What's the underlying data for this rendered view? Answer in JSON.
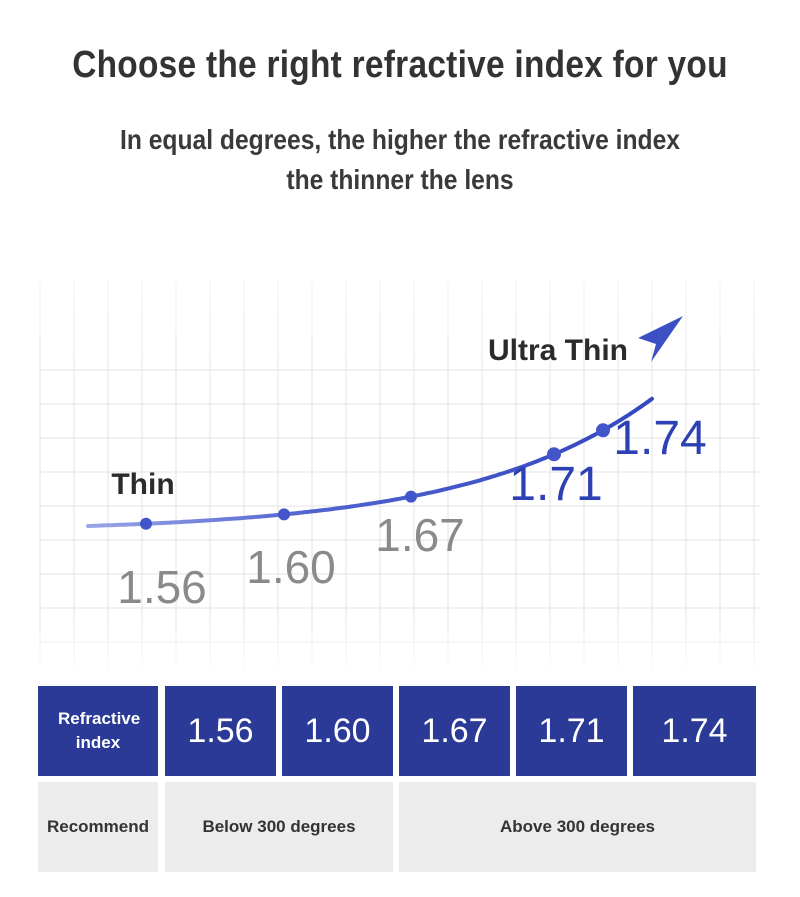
{
  "title": "Choose the right refractive index for you",
  "subtitle_line1": "In equal degrees, the higher the refractive index",
  "subtitle_line2": "the thinner the lens",
  "chart_data": {
    "type": "line",
    "x": [
      "1.56",
      "1.60",
      "1.67",
      "1.71",
      "1.74"
    ],
    "annotations": [
      "Thin",
      "Ultra Thin"
    ],
    "colors": {
      "curve": "#4356c9",
      "low_label": "#8a8a8a",
      "high_label": "#2d41b5"
    }
  },
  "table": {
    "header_label": "Refractive index",
    "indices": [
      "1.56",
      "1.60",
      "1.67",
      "1.71",
      "1.74"
    ],
    "recommend_label": "Recommend",
    "groups": [
      "Below 300 degrees",
      "Above 300 degrees"
    ],
    "colors": {
      "header_bg": "#2a3a96",
      "row_bg": "#ececec"
    }
  }
}
